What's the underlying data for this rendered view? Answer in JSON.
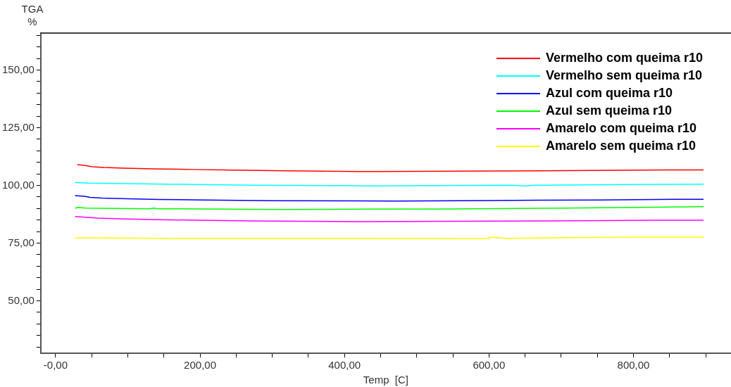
{
  "chart_data": {
    "type": "line",
    "xlabel": "Temp  [C]",
    "ylabel": "TGA %",
    "xlim": [
      -20.5,
      935
    ],
    "ylim": [
      27.3,
      166
    ],
    "xticks": [
      {
        "value": 0,
        "label": "-0,00"
      },
      {
        "value": 50,
        "label": null
      },
      {
        "value": 100,
        "label": null
      },
      {
        "value": 150,
        "label": null
      },
      {
        "value": 200,
        "label": "200,00"
      },
      {
        "value": 250,
        "label": null
      },
      {
        "value": 300,
        "label": null
      },
      {
        "value": 350,
        "label": null
      },
      {
        "value": 400,
        "label": "400,00"
      },
      {
        "value": 450,
        "label": null
      },
      {
        "value": 500,
        "label": null
      },
      {
        "value": 550,
        "label": null
      },
      {
        "value": 600,
        "label": "600,00"
      },
      {
        "value": 650,
        "label": null
      },
      {
        "value": 700,
        "label": null
      },
      {
        "value": 750,
        "label": null
      },
      {
        "value": 800,
        "label": "800,00"
      },
      {
        "value": 850,
        "label": null
      },
      {
        "value": 900,
        "label": null
      }
    ],
    "yticks": [
      {
        "value": 30,
        "label": null
      },
      {
        "value": 35,
        "label": null
      },
      {
        "value": 40,
        "label": null
      },
      {
        "value": 45,
        "label": null
      },
      {
        "value": 50,
        "label": "50,00"
      },
      {
        "value": 55,
        "label": null
      },
      {
        "value": 60,
        "label": null
      },
      {
        "value": 65,
        "label": null
      },
      {
        "value": 70,
        "label": null
      },
      {
        "value": 75,
        "label": "75,00"
      },
      {
        "value": 80,
        "label": null
      },
      {
        "value": 85,
        "label": null
      },
      {
        "value": 90,
        "label": null
      },
      {
        "value": 95,
        "label": null
      },
      {
        "value": 100,
        "label": "100,00"
      },
      {
        "value": 105,
        "label": null
      },
      {
        "value": 110,
        "label": null
      },
      {
        "value": 115,
        "label": null
      },
      {
        "value": 120,
        "label": null
      },
      {
        "value": 125,
        "label": "125,00"
      },
      {
        "value": 130,
        "label": null
      },
      {
        "value": 135,
        "label": null
      },
      {
        "value": 140,
        "label": null
      },
      {
        "value": 145,
        "label": null
      },
      {
        "value": 150,
        "label": "150,00"
      },
      {
        "value": 155,
        "label": null
      },
      {
        "value": 160,
        "label": null
      },
      {
        "value": 165,
        "label": null
      }
    ],
    "grid": false,
    "legend": "top right",
    "marker": "none",
    "line_style": "solid",
    "series": [
      {
        "name": "Vermelho com queima r10",
        "color": "#ff0000",
        "x": [
          30,
          40,
          51,
          67,
          95,
          135,
          189,
          245,
          320,
          441,
          707,
          844,
          897
        ],
        "values": [
          109.0,
          108.7,
          108.1,
          107.8,
          107.5,
          107.2,
          106.9,
          106.6,
          106.3,
          106.0,
          106.4,
          106.7,
          106.7
        ]
      },
      {
        "name": "Vermelho sem queima r10",
        "color": "#00ffff",
        "x": [
          27,
          45,
          119,
          197,
          274,
          432,
          629,
          653,
          663,
          792,
          897
        ],
        "values": [
          101.3,
          101.0,
          100.7,
          100.4,
          100.1,
          99.8,
          100.1,
          99.8,
          100.1,
          100.4,
          100.5
        ]
      },
      {
        "name": "Azul com queima r10",
        "color": "#0000ff",
        "x": [
          27,
          40,
          48,
          64,
          100,
          143,
          207,
          301,
          471,
          562,
          751,
          858,
          897
        ],
        "values": [
          95.6,
          95.3,
          94.8,
          94.5,
          94.2,
          93.9,
          93.7,
          93.4,
          93.2,
          93.4,
          93.7,
          94.0,
          94.0
        ]
      },
      {
        "name": "Azul sem queima r10",
        "color": "#00ff00",
        "x": [
          27,
          32,
          42,
          130,
          136,
          142,
          315,
          544,
          703,
          807,
          892,
          897
        ],
        "values": [
          90.2,
          90.5,
          90.2,
          89.9,
          90.2,
          89.9,
          89.6,
          89.8,
          90.2,
          90.5,
          90.8,
          90.8
        ]
      },
      {
        "name": "Amarelo com queima r10",
        "color": "#ff00ff",
        "x": [
          27,
          42,
          59,
          89,
          133,
          199,
          273,
          422,
          680,
          834,
          897
        ],
        "values": [
          86.5,
          86.2,
          85.8,
          85.5,
          85.2,
          84.9,
          84.6,
          84.3,
          84.6,
          84.9,
          84.9
        ]
      },
      {
        "name": "Amarelo sem queima r10",
        "color": "#ffff00",
        "x": [
          27,
          166,
          599,
          602,
          623,
          687,
          805,
          897
        ],
        "values": [
          77.3,
          77.1,
          77.0,
          77.6,
          77.1,
          77.3,
          77.6,
          77.6
        ]
      }
    ]
  }
}
